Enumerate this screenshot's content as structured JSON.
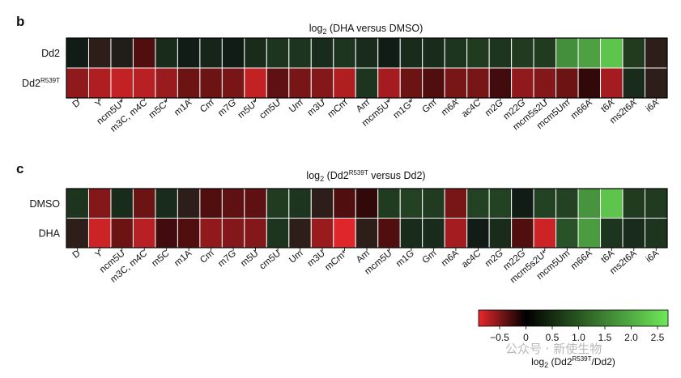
{
  "chart_data": [
    {
      "type": "heatmap",
      "panel": "b",
      "title_base": "log",
      "title_sub": "2",
      "title_rest": " (DHA versus DMSO)",
      "rows": [
        {
          "label": "Dd2",
          "label_sup": ""
        },
        {
          "label": "Dd2",
          "label_sup": "R539T"
        }
      ],
      "columns": [
        "D",
        "Y",
        "ncm5U*",
        "m3C, m4C",
        "m5C*",
        "m1A",
        "Cm",
        "m7G",
        "m5U*",
        "cm5U",
        "Um",
        "m3U",
        "mCm",
        "Am",
        "mcm5U*",
        "m1G*",
        "Gm",
        "m6A",
        "ac4C",
        "m2G",
        "m22G",
        "mcm5s2U",
        "mcm5Um",
        "m66A",
        "t6A",
        "ms2t6A",
        "i6A"
      ],
      "values": [
        [
          0.0,
          -0.05,
          -0.02,
          -0.2,
          0.05,
          0.0,
          0.02,
          0.0,
          0.05,
          0.1,
          0.1,
          0.05,
          0.1,
          0.05,
          0.0,
          0.05,
          0.05,
          0.1,
          0.15,
          0.1,
          0.15,
          0.15,
          1.1,
          1.4,
          2.0,
          0.15,
          -0.05
        ],
        [
          -0.45,
          -0.6,
          -0.7,
          -0.65,
          -0.5,
          -0.3,
          -0.3,
          -0.35,
          -0.7,
          -0.25,
          -0.35,
          -0.4,
          -0.6,
          0.1,
          -0.55,
          -0.3,
          -0.2,
          -0.35,
          -0.35,
          -0.15,
          -0.45,
          -0.4,
          -0.3,
          -0.1,
          -0.55,
          0.05,
          -0.05
        ]
      ]
    },
    {
      "type": "heatmap",
      "panel": "c",
      "title_base": "log",
      "title_sub": "2",
      "title_mid": " (Dd2",
      "title_sup": "R539T",
      "title_rest": " versus Dd2)",
      "rows": [
        {
          "label": "DMSO",
          "label_sup": ""
        },
        {
          "label": "DHA",
          "label_sup": ""
        }
      ],
      "columns": [
        "D",
        "Y",
        "ncm5U",
        "m3C, m4C",
        "m5C",
        "m1A",
        "Cm",
        "m7G",
        "m5U",
        "cm5U",
        "Um",
        "m3U",
        "mCm*",
        "Am",
        "mcm5U",
        "m1G",
        "Gm",
        "m6A",
        "ac4C",
        "m2G",
        "m22G",
        "mcm5s2U*",
        "mcm5Um",
        "m66A",
        "t6A",
        "ms2t6A",
        "i6A"
      ],
      "values": [
        [
          0.1,
          -0.4,
          0.05,
          -0.3,
          0.05,
          -0.05,
          -0.2,
          -0.25,
          -0.25,
          0.15,
          0.1,
          -0.05,
          -0.2,
          -0.1,
          0.15,
          0.2,
          0.15,
          -0.35,
          0.2,
          0.2,
          0.0,
          0.2,
          0.2,
          1.2,
          2.0,
          0.15,
          0.15
        ],
        [
          -0.05,
          -0.75,
          -0.3,
          -0.65,
          -0.15,
          -0.2,
          -0.45,
          -0.4,
          -0.4,
          0.1,
          -0.05,
          -0.5,
          -0.85,
          -0.05,
          -0.2,
          0.05,
          0.05,
          -0.55,
          0.0,
          0.05,
          -0.2,
          -0.75,
          0.35,
          1.3,
          0.1,
          0.05,
          0.1
        ]
      ]
    }
  ],
  "colorbar": {
    "ticks": [
      "−0.5",
      "0",
      "0.5",
      "1.0",
      "1.5",
      "2.0",
      "2.5"
    ],
    "tick_values": [
      -0.5,
      0,
      0.5,
      1.0,
      1.5,
      2.0,
      2.5
    ],
    "range": [
      -0.9,
      2.7
    ],
    "label_base": "log",
    "label_sub": "2",
    "label_mid": " (Dd2",
    "label_sup": "R539T",
    "label_rest": "/Dd2)",
    "colors": {
      "neg": "#e8282c",
      "zero": "#000000",
      "pos": "#6ee85a",
      "cell_border": "#ffffff",
      "frame": "#000000"
    }
  },
  "watermark": "公众号 · 新使生物"
}
